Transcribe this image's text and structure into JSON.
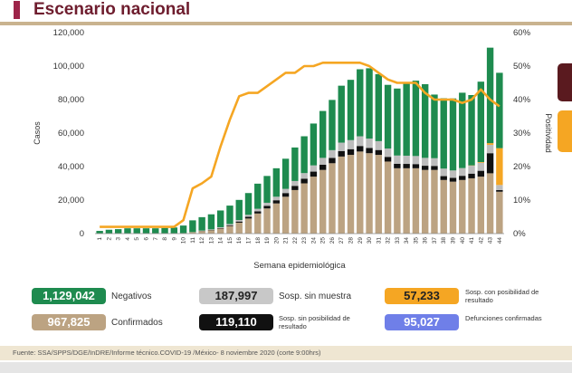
{
  "header": {
    "title": "Escenario nacional"
  },
  "chart_data": {
    "type": "bar",
    "stacked": true,
    "xlabel": "Semana epidemiológica",
    "ylabel": "Casos",
    "y2label": "Positividad",
    "ylim": [
      0,
      120000
    ],
    "y2lim": [
      0,
      60
    ],
    "yticks": [
      "0",
      "20,000",
      "40,000",
      "60,000",
      "80,000",
      "100,000",
      "120,000"
    ],
    "y2ticks": [
      "0%",
      "10%",
      "20%",
      "30%",
      "40%",
      "50%",
      "60%"
    ],
    "categories": [
      "1",
      "2",
      "3",
      "4",
      "5",
      "6",
      "7",
      "8",
      "9",
      "10",
      "11",
      "12",
      "13",
      "14",
      "15",
      "16",
      "17",
      "18",
      "19",
      "20",
      "21",
      "22",
      "23",
      "24",
      "25",
      "26",
      "27",
      "28",
      "29",
      "30",
      "31",
      "32",
      "33",
      "34",
      "35",
      "36",
      "37",
      "38",
      "39",
      "40",
      "41",
      "42",
      "43",
      "44"
    ],
    "grid": false,
    "legend": "below",
    "series": [
      {
        "name": "Confirmados",
        "color": "#bca382",
        "values": [
          100,
          100,
          150,
          150,
          150,
          150,
          150,
          150,
          150,
          300,
          900,
          1500,
          2000,
          3000,
          4500,
          6500,
          9000,
          12000,
          15000,
          18000,
          22000,
          26000,
          30000,
          34000,
          38000,
          42000,
          46000,
          47000,
          49000,
          48000,
          47000,
          43000,
          39000,
          39000,
          39000,
          38000,
          38000,
          32000,
          31000,
          32000,
          33000,
          34000,
          36000,
          25000
        ]
      },
      {
        "name": "Sosp. sin posibilidad de resultado",
        "color": "#111111",
        "values": [
          0,
          0,
          0,
          0,
          0,
          0,
          0,
          0,
          0,
          0,
          0,
          100,
          200,
          300,
          500,
          700,
          1000,
          1300,
          1600,
          1900,
          2200,
          2500,
          2800,
          3000,
          3100,
          3200,
          3300,
          3400,
          3300,
          3100,
          2900,
          2800,
          2700,
          2600,
          2500,
          2500,
          2400,
          2300,
          2300,
          2500,
          2800,
          3500,
          12000,
          1000
        ]
      },
      {
        "name": "Sosp. sin muestra",
        "color": "#bdbdbd",
        "values": [
          0,
          0,
          0,
          0,
          0,
          0,
          0,
          0,
          0,
          0,
          0,
          200,
          300,
          500,
          700,
          900,
          1200,
          1500,
          1800,
          2100,
          2500,
          2900,
          3300,
          3700,
          4100,
          4600,
          5000,
          5400,
          5800,
          5600,
          5300,
          5000,
          4900,
          4900,
          4800,
          4700,
          4600,
          4500,
          4400,
          4600,
          4700,
          4800,
          5000,
          3000
        ]
      },
      {
        "name": "Sosp. con posibilidad de resultado",
        "color": "#f5a623",
        "values": [
          0,
          0,
          0,
          0,
          0,
          0,
          0,
          0,
          0,
          0,
          0,
          0,
          0,
          0,
          0,
          0,
          0,
          0,
          0,
          0,
          0,
          0,
          0,
          0,
          0,
          0,
          0,
          0,
          0,
          0,
          0,
          0,
          0,
          0,
          0,
          0,
          0,
          0,
          0,
          0,
          200,
          400,
          1000,
          22000
        ]
      },
      {
        "name": "Negativos",
        "color": "#1e8b4f",
        "values": [
          1500,
          2200,
          2500,
          3000,
          3000,
          3000,
          3000,
          3200,
          3500,
          4500,
          7000,
          8000,
          9000,
          10000,
          11000,
          12000,
          13000,
          15000,
          16000,
          17000,
          18000,
          20000,
          22000,
          25000,
          28000,
          30000,
          34000,
          36000,
          40000,
          42000,
          40000,
          38000,
          40000,
          43000,
          45000,
          44000,
          38000,
          42000,
          43000,
          45000,
          42000,
          48000,
          57000,
          45000
        ]
      }
    ],
    "positividad": {
      "name": "Positividad",
      "color": "#f5a623",
      "values": [
        2,
        2,
        2,
        2,
        2,
        2,
        2,
        2,
        2,
        4,
        13.5,
        15,
        17,
        26,
        34,
        41,
        42,
        42,
        44,
        46,
        48,
        48,
        50,
        50,
        51,
        51,
        51,
        51,
        51,
        50,
        48,
        46,
        45,
        45,
        45,
        42,
        40,
        40,
        40,
        39,
        40,
        43,
        40,
        38
      ]
    }
  },
  "legend": [
    {
      "value": "1,129,042",
      "label": "Negativos",
      "color": "#1e8b4f",
      "text_color": "#ffffff"
    },
    {
      "value": "187,997",
      "label": "Sosp. sin muestra",
      "color": "#c8c8c8",
      "text_color": "#222222"
    },
    {
      "value": "57,233",
      "label": "Sosp. con posibilidad de resultado",
      "color": "#f5a623",
      "text_color": "#222222"
    },
    {
      "value": "967,825",
      "label": "Confirmados",
      "color": "#bca382",
      "text_color": "#ffffff"
    },
    {
      "value": "119,110",
      "label": "Sosp. sin posibilidad de resultado",
      "color": "#111111",
      "text_color": "#ffffff"
    },
    {
      "value": "95,027",
      "label": "Defunciones confirmadas",
      "color": "#6f7fe8",
      "text_color": "#ffffff"
    }
  ],
  "source": "Fuente: SSA/SPPS/DGE/InDRE/Informe técnico.COVID-19 /México- 8 noviembre 2020 (corte 9:00hrs)",
  "side_tabs": [
    {
      "color": "#5a1a1f"
    },
    {
      "color": "#f5a623"
    }
  ]
}
